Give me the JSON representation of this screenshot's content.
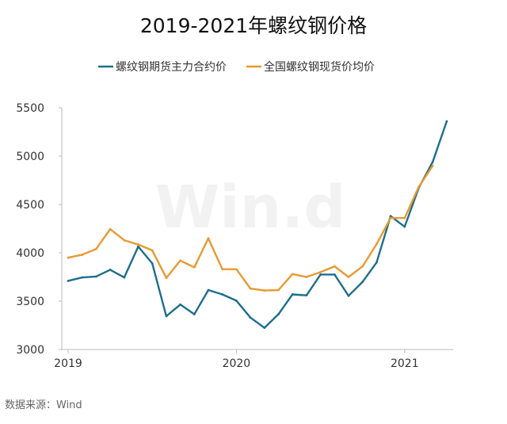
{
  "title": "2019-2021年螺纹钢价格",
  "source": "数据来源：Wind",
  "watermark": "Win.d",
  "chart_data": {
    "type": "line",
    "title": "2019-2021年螺纹钢价格",
    "xlabel": "",
    "ylabel": "",
    "x_tick_labels": [
      "2019",
      "2020",
      "2021"
    ],
    "ylim": [
      3000,
      5500
    ],
    "yticks": [
      3000,
      3500,
      4000,
      4500,
      5000,
      5500
    ],
    "grid": false,
    "legend_position": "top",
    "x": [
      "2019-01",
      "2019-02",
      "2019-03",
      "2019-04",
      "2019-05",
      "2019-06",
      "2019-07",
      "2019-08",
      "2019-09",
      "2019-10",
      "2019-11",
      "2019-12",
      "2020-01",
      "2020-02",
      "2020-03",
      "2020-04",
      "2020-05",
      "2020-06",
      "2020-07",
      "2020-08",
      "2020-09",
      "2020-10",
      "2020-11",
      "2020-12",
      "2021-01",
      "2021-02",
      "2021-03",
      "2021-04"
    ],
    "series": [
      {
        "name": "螺纹钢期货主力合约价",
        "color": "#1f6e8c",
        "values": [
          3710,
          3745,
          3755,
          3825,
          3745,
          4065,
          3890,
          3345,
          3465,
          3365,
          3615,
          3570,
          3505,
          3330,
          3225,
          3365,
          3570,
          3560,
          3775,
          3775,
          3555,
          3700,
          3900,
          4380,
          4270,
          4670,
          4940,
          5360
        ]
      },
      {
        "name": "全国螺纹钢现货价均价",
        "color": "#e79a32",
        "values": [
          3950,
          3980,
          4040,
          4245,
          4130,
          4085,
          4025,
          3740,
          3920,
          3850,
          4150,
          3830,
          3830,
          3630,
          3610,
          3615,
          3780,
          3750,
          3800,
          3860,
          3750,
          3860,
          4090,
          4360,
          4360,
          4680,
          4900,
          null
        ]
      }
    ]
  }
}
